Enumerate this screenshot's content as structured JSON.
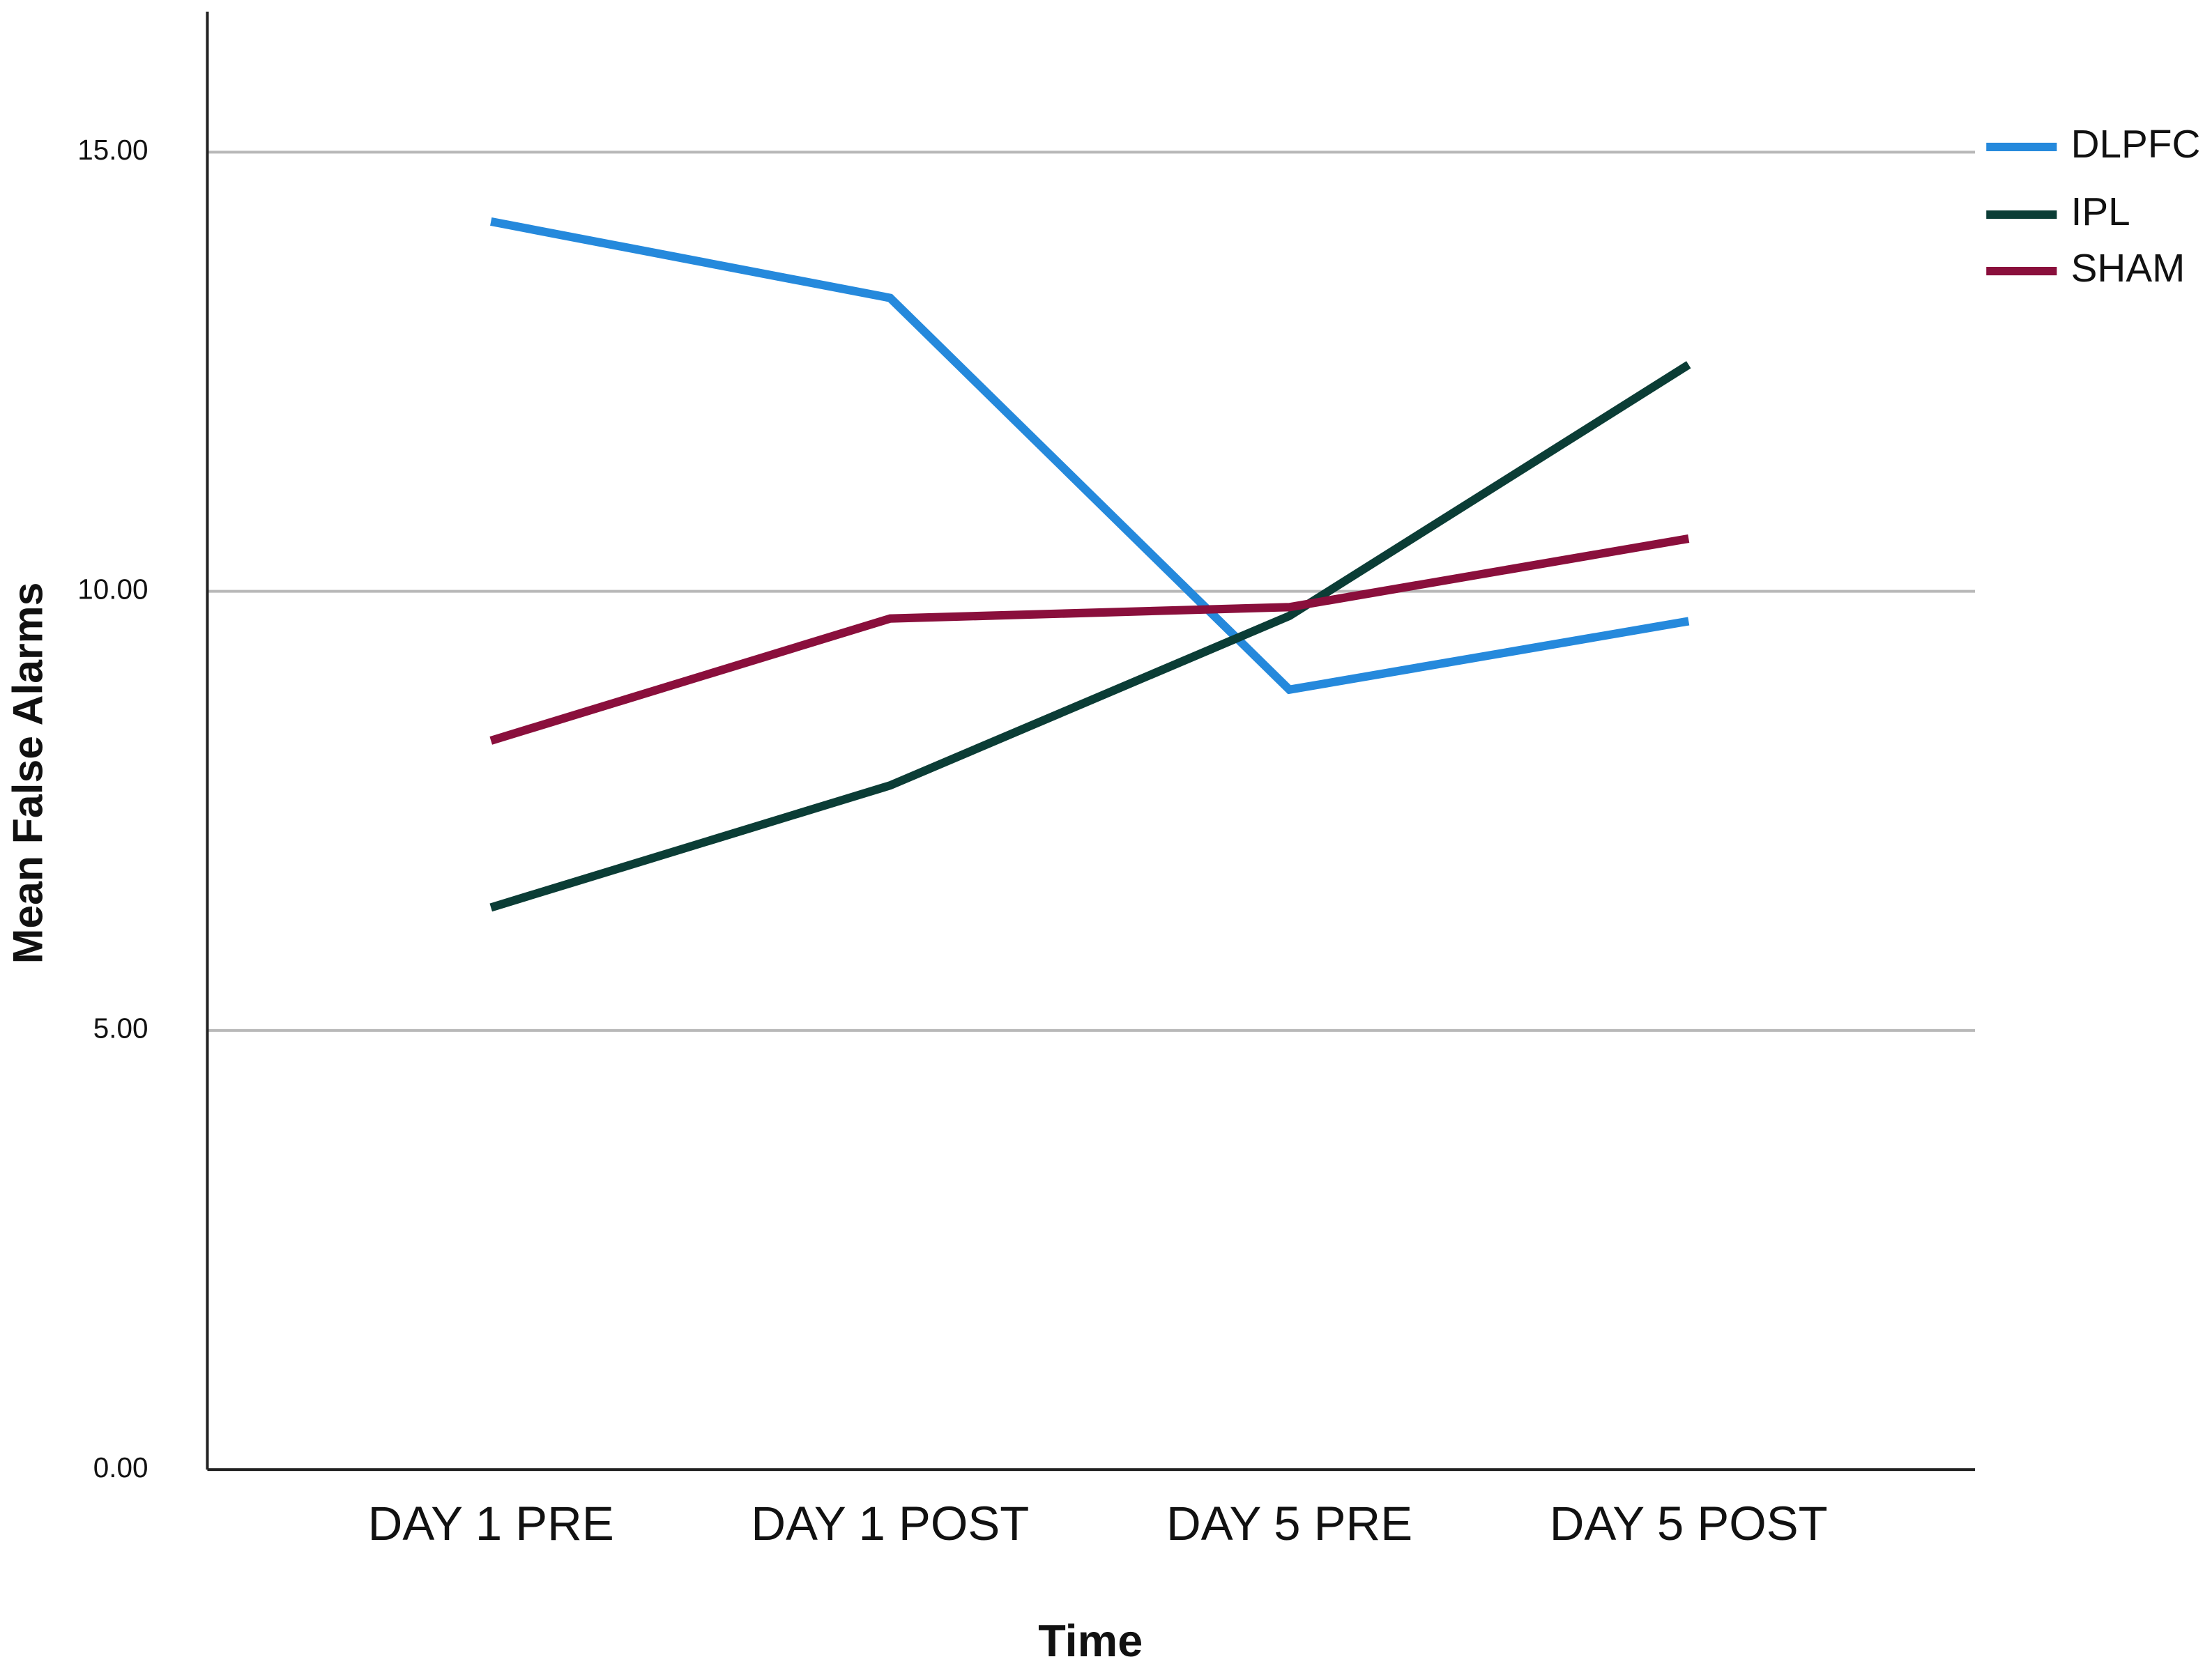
{
  "chart_data": {
    "type": "line",
    "xlabel": "Time",
    "ylabel": "Mean False Alarms",
    "categories": [
      "DAY 1 PRE",
      "DAY 1 POST",
      "DAY 5 PRE",
      "DAY 5 POST"
    ],
    "series": [
      {
        "name": "DLPFC",
        "color": "#2589dc",
        "values": [
          14.21,
          13.34,
          8.88,
          9.66
        ]
      },
      {
        "name": "IPL",
        "color": "#0b3d36",
        "values": [
          6.4,
          7.79,
          9.72,
          12.58
        ]
      },
      {
        "name": "SHAM",
        "color": "#8a0f3c",
        "values": [
          8.3,
          9.69,
          9.82,
          10.6
        ]
      }
    ],
    "ylim": [
      0,
      16.6
    ],
    "yticks": [
      {
        "value": 0,
        "label": "0.00"
      },
      {
        "value": 5,
        "label": "5.00"
      },
      {
        "value": 10,
        "label": "10.00"
      },
      {
        "value": 15,
        "label": "15.00"
      }
    ],
    "grid": true,
    "legend": "right"
  }
}
